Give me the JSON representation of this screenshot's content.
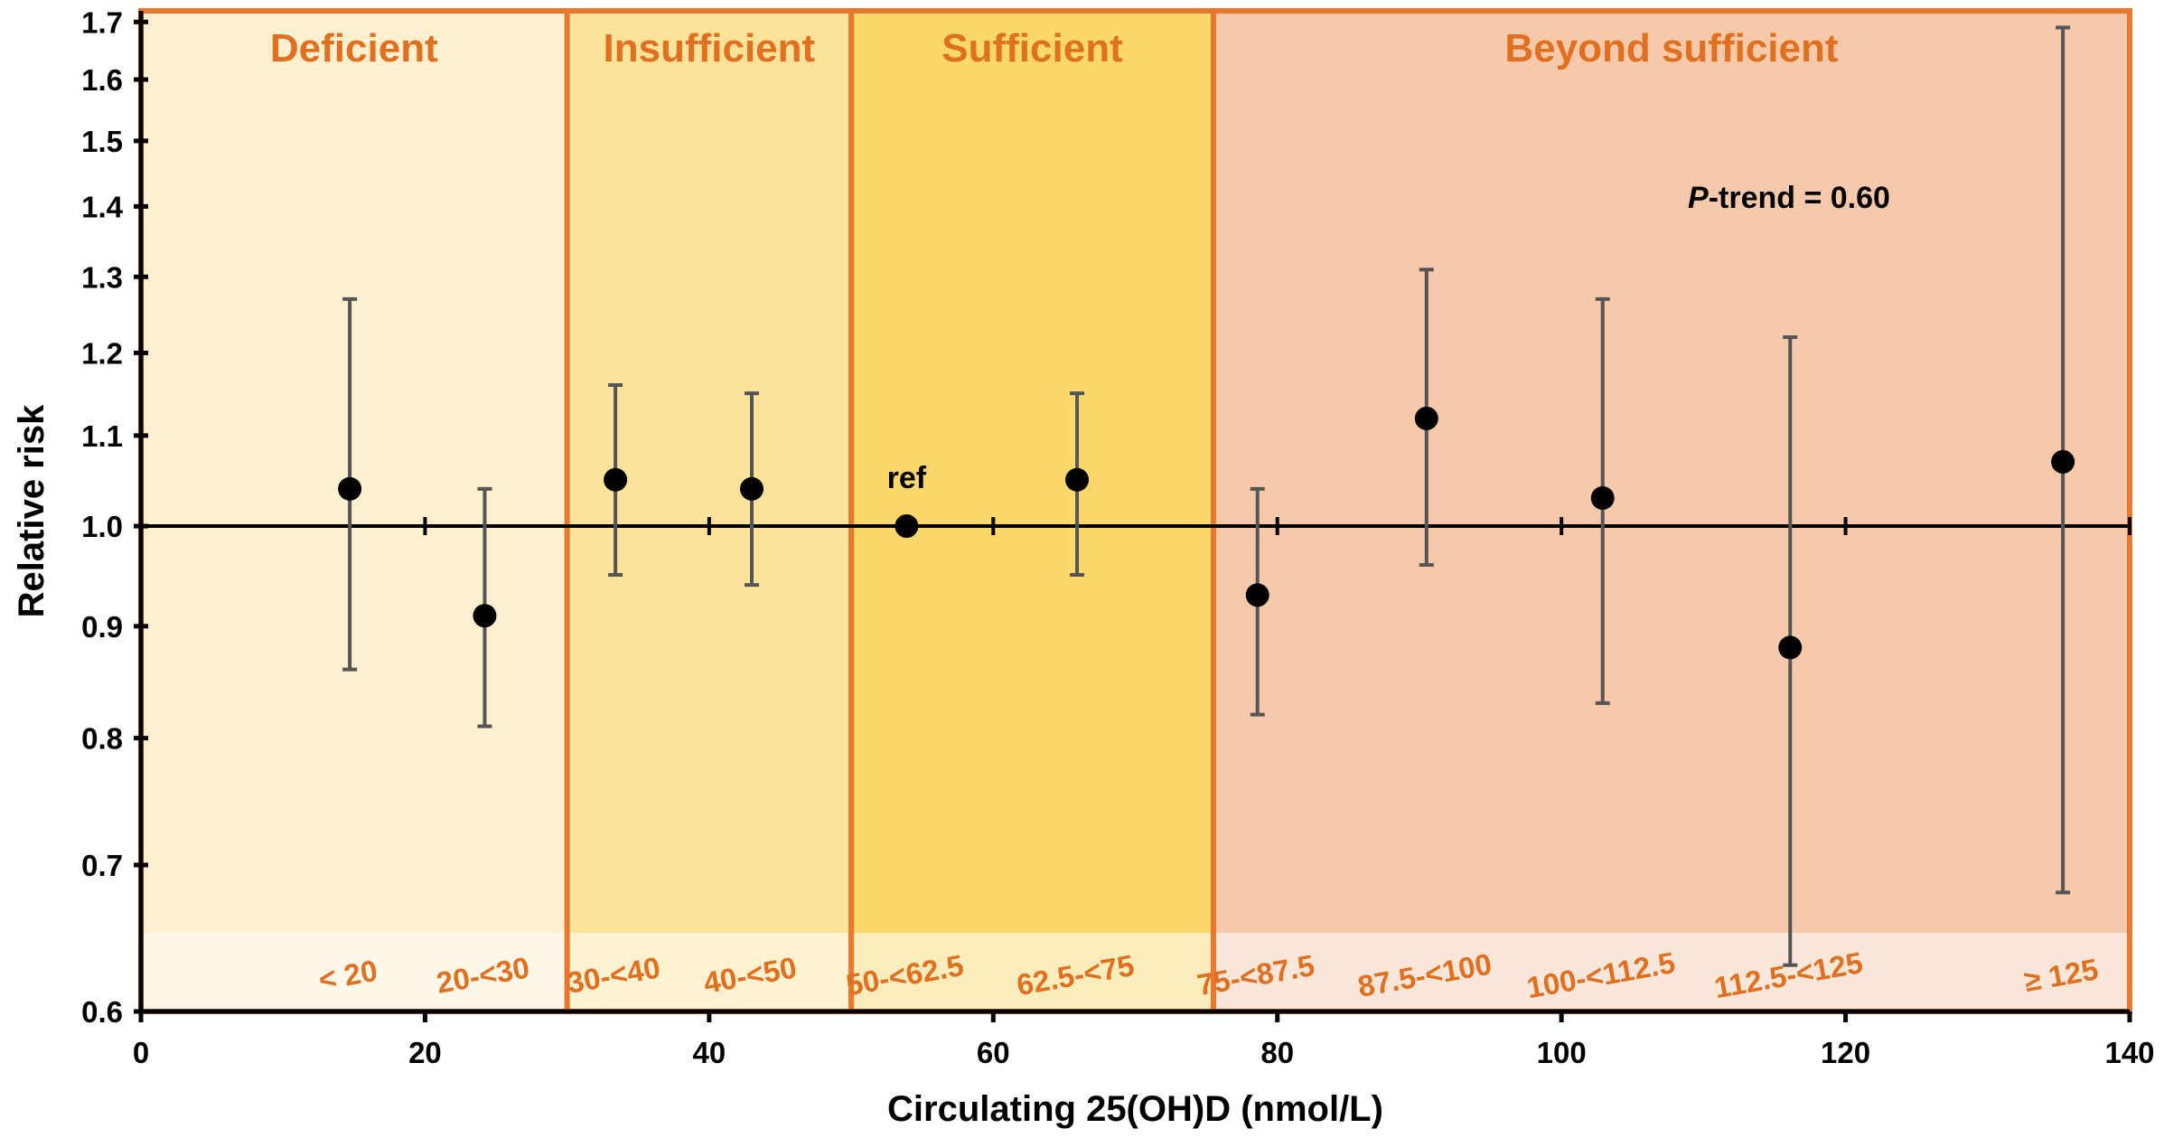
{
  "chart_data": {
    "type": "scatter",
    "xlabel": "Circulating 25(OH)D (nmol/L)",
    "ylabel": "Relative risk",
    "xlim": [
      0,
      140
    ],
    "ylim": [
      0.6,
      1.72
    ],
    "yscale": "log",
    "xticks": [
      0,
      20,
      40,
      60,
      80,
      100,
      120,
      140
    ],
    "yticks": [
      0.6,
      0.7,
      0.8,
      0.9,
      1.0,
      1.1,
      1.2,
      1.3,
      1.4,
      1.5,
      1.6,
      1.7
    ],
    "ytick_labels": [
      "0.6",
      "0.7",
      "0.8",
      "0.9",
      "1.0",
      "1.1",
      "1.2",
      "1.3",
      "1.4",
      "1.5",
      "1.6",
      "1.7"
    ],
    "reference_line": 1.0,
    "regions": [
      {
        "label": "Deficient",
        "from": 0,
        "to": 30,
        "color": "#FEF0CF"
      },
      {
        "label": "Insufficient",
        "from": 30,
        "to": 50,
        "color": "#FDE39A"
      },
      {
        "label": "Sufficient",
        "from": 50,
        "to": 75.5,
        "color": "#FCD76A"
      },
      {
        "label": "Beyond sufficient",
        "from": 75.5,
        "to": 140,
        "color": "#F7C9AB"
      }
    ],
    "categories": [
      "< 20",
      "20-<30",
      "30-<40",
      "40-<50",
      "50-<62.5",
      "62.5-<75",
      "75-<87.5",
      "87.5-<100",
      "100-<112.5",
      "112.5-<125",
      "≥ 125"
    ],
    "points": [
      {
        "x": 14.7,
        "y": 1.04,
        "lo": 0.86,
        "hi": 1.27
      },
      {
        "x": 24.2,
        "y": 0.91,
        "lo": 0.81,
        "hi": 1.04
      },
      {
        "x": 33.4,
        "y": 1.05,
        "lo": 0.95,
        "hi": 1.16
      },
      {
        "x": 43.0,
        "y": 1.04,
        "lo": 0.94,
        "hi": 1.15
      },
      {
        "x": 53.9,
        "y": 1.0,
        "lo": null,
        "hi": null
      },
      {
        "x": 65.9,
        "y": 1.05,
        "lo": 0.95,
        "hi": 1.15
      },
      {
        "x": 78.6,
        "y": 0.93,
        "lo": 0.82,
        "hi": 1.04
      },
      {
        "x": 90.5,
        "y": 1.12,
        "lo": 0.96,
        "hi": 1.31
      },
      {
        "x": 102.9,
        "y": 1.03,
        "lo": 0.83,
        "hi": 1.27
      },
      {
        "x": 116.1,
        "y": 0.88,
        "lo": 0.63,
        "hi": 1.22
      },
      {
        "x": 135.3,
        "y": 1.07,
        "lo": 0.68,
        "hi": 1.69
      }
    ],
    "annotations": {
      "ref_label": "ref",
      "p_trend_italic": "P",
      "p_trend_rest": "-trend = 0.60"
    },
    "colors": {
      "accent": "#E07020",
      "border": "#E8782E",
      "errorbar": "#555555",
      "point": "#000000"
    }
  }
}
